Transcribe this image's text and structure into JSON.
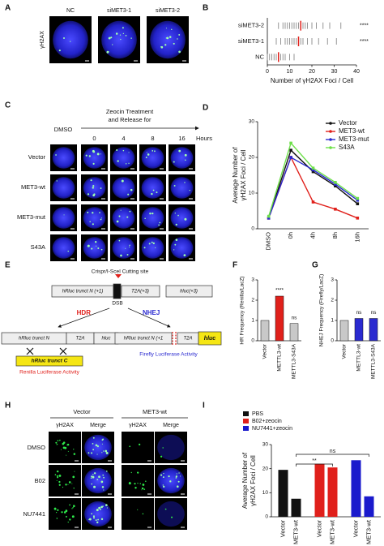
{
  "figure": {
    "a": {
      "label": "A",
      "row_label": "γH2AX",
      "columns": [
        "NC",
        "siMET3-1",
        "siMET3-2"
      ]
    },
    "c": {
      "label": "C",
      "treatment": [
        "Zeocin Treatment",
        "and Release for"
      ],
      "control": "DMSO",
      "times": [
        "0",
        "4",
        "8",
        "16"
      ],
      "time_unit": "Hours",
      "rows": [
        "Vector",
        "MET3-wt",
        "MET3-mut",
        "S43A"
      ]
    },
    "e": {
      "label": "E",
      "cutting_site": "Crispr/I-SceI Cutting site",
      "construct": [
        "hRluc trunct N (+1)",
        "T2A(+3)",
        "hluc(+3)"
      ],
      "break": "DSB",
      "hdr": "HDR",
      "nhej": "NHEJ",
      "hdr_product": [
        "hRluc trunct N",
        "T2A",
        "hluc"
      ],
      "donor": "hRluc trunct C",
      "hdr_readout": "Renilla Luciferase Activity",
      "nhej_product": [
        "hRluc trunct N (+1",
        "T2A",
        "hluc"
      ],
      "nhej_readout": "Firefly Luciferase Activity"
    },
    "h": {
      "label": "H",
      "groups": [
        "Vector",
        "MET3-wt"
      ],
      "channels": [
        "γH2AX",
        "Merge",
        "γH2AX",
        "Merge"
      ],
      "rows": [
        "DMSO",
        "B02",
        "NU7441"
      ]
    }
  },
  "chart_data": [
    {
      "type": "dot",
      "panel": "B",
      "categories": [
        "siMET3-2",
        "siMET3-1",
        "NC"
      ],
      "values": [
        [
          5,
          7,
          8,
          9,
          10,
          11,
          12,
          13,
          14,
          15,
          16,
          17,
          18,
          20,
          22,
          25,
          28,
          33
        ],
        [
          4,
          6,
          8,
          9,
          10,
          11,
          12,
          13,
          14,
          15,
          16,
          18,
          20,
          23,
          27,
          31
        ],
        [
          0,
          1,
          2,
          3,
          4,
          5,
          6,
          7,
          8,
          10,
          12
        ]
      ],
      "means": [
        15,
        14,
        5
      ],
      "color": "#8a8a8a",
      "mean_color": "#e0201b",
      "annotations": [
        "****",
        "****"
      ],
      "xlabel": "Number of γH2AX Foci / Cell",
      "xlim": [
        0,
        40
      ],
      "xticks": [
        0,
        10,
        20,
        30,
        40
      ]
    },
    {
      "type": "line",
      "panel": "D",
      "categories": [
        "DMSO",
        "0h",
        "4h",
        "8h",
        "16h"
      ],
      "series": [
        {
          "name": "Vector",
          "color": "#111111",
          "values": [
            3,
            22,
            16,
            12,
            7
          ]
        },
        {
          "name": "MET3-wt",
          "color": "#e0201b",
          "values": [
            3,
            20,
            7.5,
            5.5,
            3
          ]
        },
        {
          "name": "MET3-mut",
          "color": "#2a2ad0",
          "values": [
            3,
            20,
            16.5,
            12.5,
            8
          ]
        },
        {
          "name": "S43A",
          "color": "#6ee04a",
          "values": [
            3.5,
            24,
            17,
            13,
            8.5
          ]
        }
      ],
      "ylabel": [
        "Average Number of",
        "γH2AX Foci / Cell"
      ],
      "ylim": [
        0,
        30
      ],
      "yticks": [
        0,
        10,
        20,
        30
      ]
    },
    {
      "type": "bar",
      "panel": "F",
      "categories": [
        "Vector",
        "METTL3-wt",
        "METTL3-S43A"
      ],
      "values": [
        1,
        2.2,
        0.85
      ],
      "colors": [
        "#c8c8c8",
        "#e0201b",
        "#c8c8c8"
      ],
      "annotations": [
        "****",
        "ns"
      ],
      "ylabel": "HR Frequency (Renilla/LacZ)",
      "ylim": [
        0,
        3
      ],
      "yticks": [
        0,
        1,
        2,
        3
      ]
    },
    {
      "type": "bar",
      "panel": "G",
      "categories": [
        "Vector",
        "METTL3-wt",
        "METTL3-S43A"
      ],
      "values": [
        1,
        1.1,
        1.1
      ],
      "colors": [
        "#c8c8c8",
        "#2a2ad0",
        "#2a2ad0"
      ],
      "annotations": [
        "ns",
        "ns"
      ],
      "ylabel": "NHEJ Frequency (Firefly/LacZ)",
      "ylim": [
        0,
        3
      ],
      "yticks": [
        0,
        1,
        2,
        3
      ]
    },
    {
      "type": "grouped_bar",
      "panel": "I",
      "categories": [
        "Vector",
        "MET3-wt"
      ],
      "series": [
        {
          "name": "PBS",
          "color": "#111111",
          "values": [
            19.5,
            7.5
          ]
        },
        {
          "name": "B02+zeocin",
          "color": "#e0201b",
          "values": [
            22,
            20.5
          ]
        },
        {
          "name": "NU7441+zeocin",
          "color": "#1a1acc",
          "values": [
            23.5,
            8.5
          ]
        }
      ],
      "annotations": [
        "**",
        "ns"
      ],
      "ylabel": [
        "Average Number of",
        "γH2AX Foci / Cell"
      ],
      "ylim": [
        0,
        30
      ],
      "yticks": [
        0,
        10,
        20,
        30
      ]
    }
  ]
}
